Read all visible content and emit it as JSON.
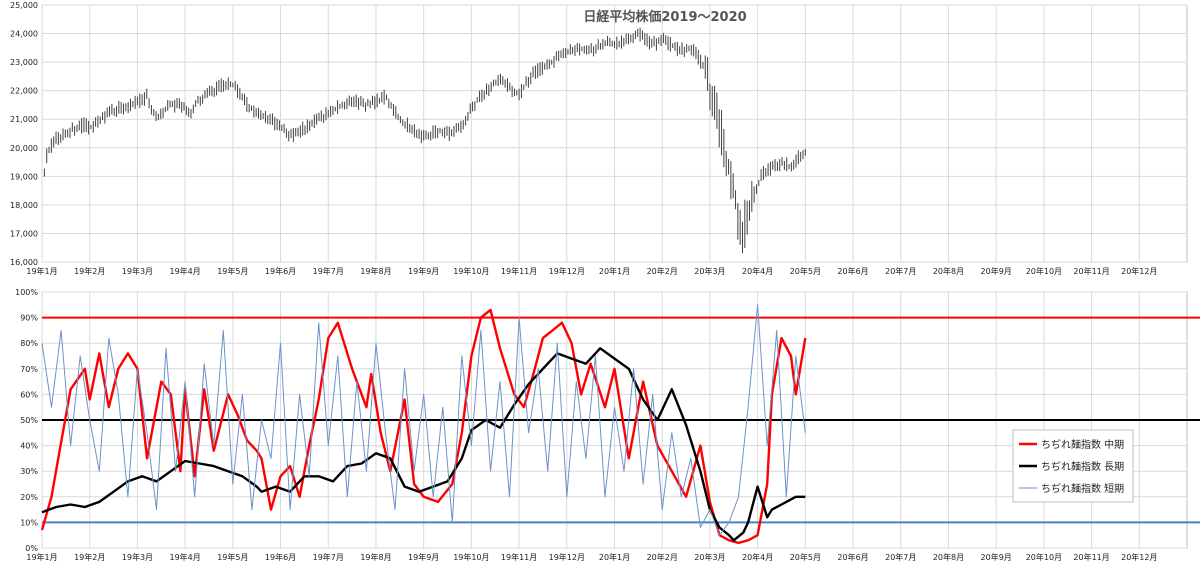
{
  "chart_data": [
    {
      "type": "candlestick",
      "title": "日経平均株価2019～2020",
      "ylim": [
        16000,
        25000
      ],
      "y_ticks": [
        "16,000",
        "17,000",
        "18,000",
        "19,000",
        "20,000",
        "21,000",
        "22,000",
        "23,000",
        "24,000",
        "25,000"
      ],
      "x_ticks": [
        "19年1月",
        "19年2月",
        "19年3月",
        "19年4月",
        "19年5月",
        "19年6月",
        "19年7月",
        "19年8月",
        "19年9月",
        "19年10月",
        "19年11月",
        "19年12月",
        "20年1月",
        "20年2月",
        "20年3月",
        "20年4月",
        "20年5月",
        "20年6月",
        "20年7月",
        "20年8月",
        "20年9月",
        "20年10月",
        "20年11月",
        "20年12月"
      ],
      "grid": true,
      "x_range_months": [
        0,
        24
      ],
      "close_trend": {
        "t": [
          0.05,
          0.12,
          0.3,
          0.6,
          0.9,
          1.0,
          1.3,
          1.6,
          1.9,
          2.2,
          2.4,
          2.55,
          2.7,
          2.9,
          3.1,
          3.3,
          3.6,
          3.8,
          4.0,
          4.3,
          4.5,
          4.8,
          5.0,
          5.2,
          5.5,
          5.8,
          6.0,
          6.3,
          6.6,
          6.8,
          7.0,
          7.2,
          7.35,
          7.5,
          7.8,
          8.0,
          8.3,
          8.6,
          8.8,
          9.0,
          9.3,
          9.6,
          9.8,
          10.0,
          10.3,
          10.6,
          10.9,
          11.2,
          11.5,
          11.8,
          12.0,
          12.3,
          12.5,
          12.6,
          12.8,
          13.0,
          13.2,
          13.4,
          13.6,
          13.75,
          13.9,
          14.05,
          14.2,
          14.35,
          14.5,
          14.65,
          14.8,
          14.95,
          15.1,
          15.3,
          15.5,
          15.7,
          15.85,
          16.0
        ],
        "close": [
          19200,
          19900,
          20300,
          20600,
          20800,
          20700,
          21100,
          21400,
          21500,
          21800,
          21000,
          21300,
          21500,
          21500,
          21200,
          21700,
          22000,
          22200,
          22200,
          21500,
          21200,
          21000,
          20700,
          20400,
          20700,
          21000,
          21200,
          21500,
          21600,
          21500,
          21600,
          21800,
          21400,
          21000,
          20600,
          20400,
          20600,
          20500,
          20800,
          21400,
          22000,
          22400,
          22100,
          21900,
          22600,
          22900,
          23300,
          23500,
          23400,
          23700,
          23600,
          23800,
          24000,
          23900,
          23600,
          23800,
          23600,
          23400,
          23500,
          23200,
          22700,
          21700,
          20800,
          19600,
          18500,
          17000,
          17600,
          18500,
          19100,
          19300,
          19500,
          19300,
          19700,
          19800
        ]
      }
    },
    {
      "type": "line",
      "ylim": [
        0,
        100
      ],
      "y_ticks": [
        "0%",
        "10%",
        "20%",
        "30%",
        "40%",
        "50%",
        "60%",
        "70%",
        "80%",
        "90%",
        "100%"
      ],
      "x_ticks": [
        "19年1月",
        "19年2月",
        "19年3月",
        "19年4月",
        "19年5月",
        "19年6月",
        "19年7月",
        "19年8月",
        "19年9月",
        "19年10月",
        "19年11月",
        "19年12月",
        "20年1月",
        "20年2月",
        "20年3月",
        "20年4月",
        "20年5月",
        "20年6月",
        "20年7月",
        "20年8月",
        "20年9月",
        "20年10月",
        "20年11月",
        "20年12月"
      ],
      "grid": true,
      "x_range_months": [
        0,
        24
      ],
      "reference_lines": [
        {
          "y": 90,
          "color": "#ff0000"
        },
        {
          "y": 50,
          "color": "#000000"
        },
        {
          "y": 10,
          "color": "#4f81bd"
        }
      ],
      "legend_position": "right",
      "series": [
        {
          "name": "ちぢれ麺指数 中期",
          "color": "#ff0000",
          "x": [
            0.0,
            0.2,
            0.35,
            0.6,
            0.9,
            1.0,
            1.2,
            1.4,
            1.6,
            1.8,
            2.0,
            2.2,
            2.5,
            2.7,
            2.9,
            3.0,
            3.2,
            3.4,
            3.6,
            3.9,
            4.1,
            4.3,
            4.5,
            4.6,
            4.8,
            5.0,
            5.2,
            5.4,
            5.6,
            5.8,
            6.0,
            6.2,
            6.5,
            6.8,
            6.9,
            7.1,
            7.3,
            7.6,
            7.8,
            8.0,
            8.3,
            8.6,
            8.8,
            9.0,
            9.2,
            9.4,
            9.6,
            9.7,
            9.9,
            10.1,
            10.3,
            10.5,
            10.7,
            10.9,
            11.1,
            11.3,
            11.5,
            11.8,
            12.0,
            12.3,
            12.6,
            12.9,
            13.2,
            13.5,
            13.8,
            14.0,
            14.2,
            14.4,
            14.6,
            14.8,
            15.0,
            15.2,
            15.3,
            15.5,
            15.7,
            15.8,
            16.0
          ],
          "y": [
            7,
            20,
            36,
            62,
            70,
            58,
            76,
            55,
            70,
            76,
            70,
            35,
            65,
            60,
            30,
            62,
            28,
            62,
            38,
            60,
            52,
            42,
            38,
            35,
            15,
            28,
            32,
            20,
            40,
            58,
            82,
            88,
            70,
            55,
            68,
            45,
            30,
            58,
            25,
            20,
            18,
            25,
            45,
            75,
            90,
            93,
            78,
            72,
            60,
            55,
            68,
            82,
            85,
            88,
            80,
            60,
            72,
            55,
            70,
            35,
            65,
            40,
            30,
            20,
            40,
            18,
            5,
            3,
            2,
            3,
            5,
            25,
            60,
            82,
            75,
            60,
            82
          ]
        },
        {
          "name": "ちぢれ麺指数 長期",
          "color": "#000000",
          "x": [
            0.0,
            0.3,
            0.6,
            0.9,
            1.2,
            1.5,
            1.8,
            2.1,
            2.4,
            2.7,
            3.0,
            3.3,
            3.6,
            3.9,
            4.2,
            4.5,
            4.6,
            4.9,
            5.2,
            5.5,
            5.8,
            6.1,
            6.4,
            6.7,
            7.0,
            7.3,
            7.6,
            7.9,
            8.2,
            8.5,
            8.8,
            9.0,
            9.3,
            9.6,
            9.9,
            10.2,
            10.5,
            10.8,
            11.1,
            11.4,
            11.7,
            12.0,
            12.3,
            12.6,
            12.9,
            13.2,
            13.5,
            13.8,
            14.0,
            14.2,
            14.4,
            14.5,
            14.7,
            14.8,
            15.0,
            15.2,
            15.3,
            15.5,
            15.8,
            16.0
          ],
          "y": [
            14,
            16,
            17,
            16,
            18,
            22,
            26,
            28,
            26,
            30,
            34,
            33,
            32,
            30,
            28,
            24,
            22,
            24,
            22,
            28,
            28,
            26,
            32,
            33,
            37,
            35,
            24,
            22,
            24,
            26,
            35,
            46,
            50,
            47,
            56,
            64,
            70,
            76,
            74,
            72,
            78,
            74,
            70,
            58,
            50,
            62,
            48,
            30,
            15,
            8,
            5,
            3,
            6,
            10,
            24,
            12,
            15,
            17,
            20,
            20
          ]
        },
        {
          "name": "ちぢれ麺指数 短期",
          "color": "#6b93c9",
          "x": [
            0.0,
            0.2,
            0.4,
            0.6,
            0.8,
            1.0,
            1.2,
            1.4,
            1.6,
            1.8,
            2.0,
            2.2,
            2.4,
            2.6,
            2.8,
            3.0,
            3.2,
            3.4,
            3.6,
            3.8,
            4.0,
            4.2,
            4.4,
            4.6,
            4.8,
            5.0,
            5.2,
            5.4,
            5.6,
            5.8,
            6.0,
            6.2,
            6.4,
            6.6,
            6.8,
            7.0,
            7.2,
            7.4,
            7.6,
            7.8,
            8.0,
            8.2,
            8.4,
            8.6,
            8.8,
            9.0,
            9.2,
            9.4,
            9.6,
            9.8,
            10.0,
            10.2,
            10.4,
            10.6,
            10.8,
            11.0,
            11.2,
            11.4,
            11.6,
            11.8,
            12.0,
            12.2,
            12.4,
            12.6,
            12.8,
            13.0,
            13.2,
            13.4,
            13.6,
            13.8,
            14.0,
            14.2,
            14.4,
            14.6,
            14.8,
            15.0,
            15.2,
            15.4,
            15.6,
            15.8,
            16.0
          ],
          "y": [
            80,
            55,
            85,
            40,
            75,
            50,
            30,
            82,
            60,
            20,
            70,
            45,
            15,
            78,
            30,
            65,
            20,
            72,
            40,
            85,
            25,
            60,
            15,
            50,
            35,
            80,
            15,
            60,
            28,
            88,
            40,
            75,
            20,
            65,
            30,
            80,
            45,
            15,
            70,
            30,
            60,
            20,
            55,
            10,
            75,
            40,
            85,
            30,
            65,
            20,
            90,
            45,
            70,
            30,
            80,
            20,
            65,
            35,
            75,
            20,
            55,
            30,
            70,
            25,
            60,
            15,
            45,
            20,
            35,
            8,
            15,
            5,
            10,
            20,
            55,
            95,
            40,
            85,
            20,
            75,
            45
          ]
        }
      ]
    }
  ]
}
